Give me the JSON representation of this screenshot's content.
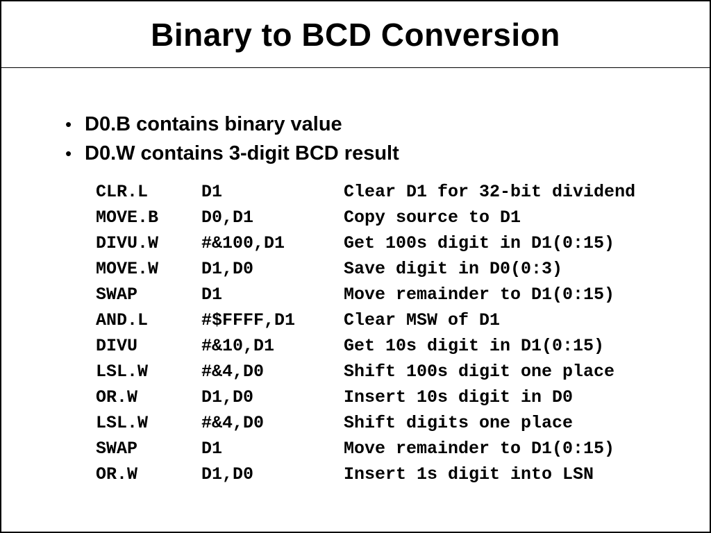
{
  "slide": {
    "title": "Binary to BCD Conversion",
    "bullets": [
      "D0.B contains binary value",
      "D0.W contains 3-digit BCD result"
    ],
    "code": {
      "lines": [
        {
          "op": "CLR.L",
          "args": "D1",
          "comment": "Clear D1 for 32-bit dividend"
        },
        {
          "op": "MOVE.B",
          "args": "D0,D1",
          "comment": "Copy source to D1"
        },
        {
          "op": "DIVU.W",
          "args": "#&100,D1",
          "comment": "Get 100s digit in D1(0:15)"
        },
        {
          "op": "MOVE.W",
          "args": "D1,D0",
          "comment": "Save digit in D0(0:3)"
        },
        {
          "op": "SWAP",
          "args": "D1",
          "comment": "Move remainder to D1(0:15)"
        },
        {
          "op": "AND.L",
          "args": "#$FFFF,D1",
          "comment": "Clear MSW of D1"
        },
        {
          "op": "DIVU",
          "args": "#&10,D1",
          "comment": "Get 10s digit in D1(0:15)"
        },
        {
          "op": "LSL.W",
          "args": "#&4,D0",
          "comment": "Shift 100s digit one place"
        },
        {
          "op": "OR.W",
          "args": "D1,D0",
          "comment": "Insert 10s digit in D0"
        },
        {
          "op": "LSL.W",
          "args": "#&4,D0",
          "comment": "Shift digits one place"
        },
        {
          "op": "SWAP",
          "args": "D1",
          "comment": "Move remainder to D1(0:15)"
        },
        {
          "op": "OR.W",
          "args": "D1,D0",
          "comment": "Insert 1s digit into LSN"
        }
      ]
    }
  }
}
